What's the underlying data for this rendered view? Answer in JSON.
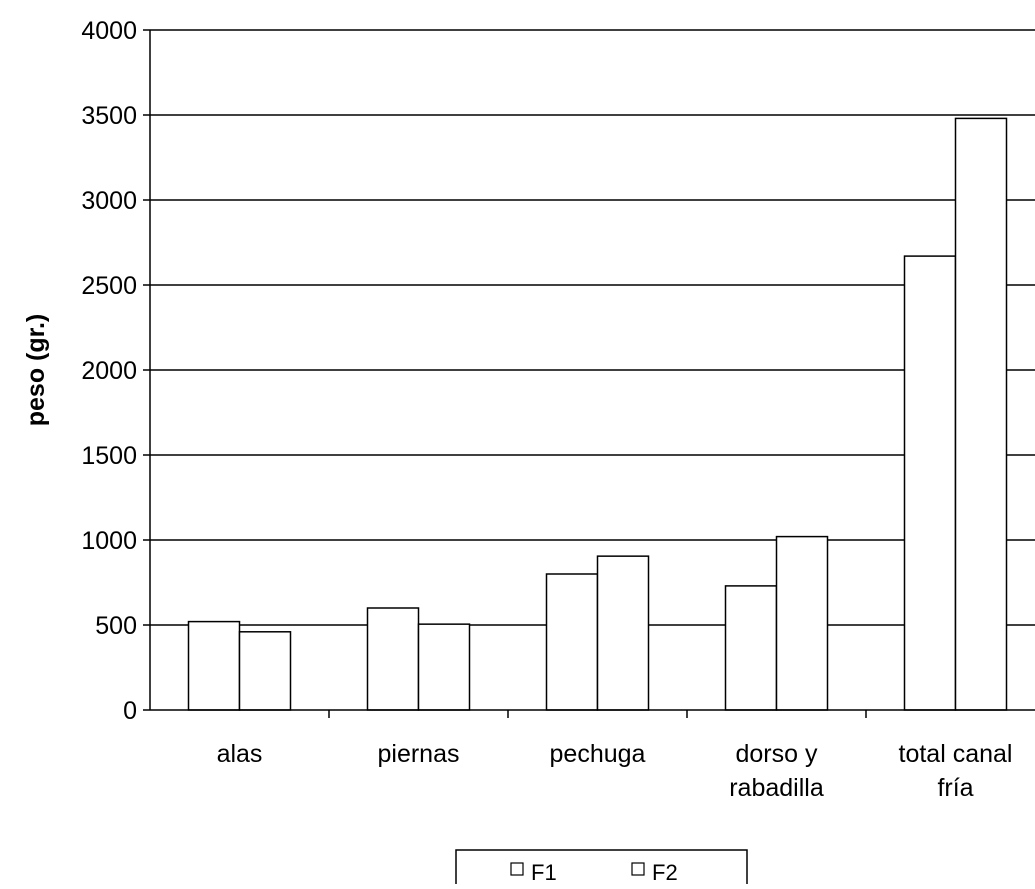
{
  "chart_data": {
    "type": "bar",
    "title": "",
    "xlabel": "",
    "ylabel": "peso (gr.)",
    "ylim": [
      0,
      4000
    ],
    "yticks": [
      0,
      500,
      1000,
      1500,
      2000,
      2500,
      3000,
      3500,
      4000
    ],
    "grid": true,
    "legend_position": "bottom",
    "categories": [
      [
        "alas"
      ],
      [
        "piernas"
      ],
      [
        "pechuga"
      ],
      [
        "dorso y",
        "rabadilla"
      ],
      [
        "total canal",
        "fría"
      ]
    ],
    "series": [
      {
        "name": "F1",
        "values": [
          520,
          600,
          800,
          730,
          2670
        ]
      },
      {
        "name": "F2",
        "values": [
          460,
          505,
          905,
          1020,
          3480
        ]
      }
    ],
    "colors": {
      "bar_fill": "#ffffff",
      "bar_stroke": "#000000",
      "grid": "#000000"
    }
  }
}
